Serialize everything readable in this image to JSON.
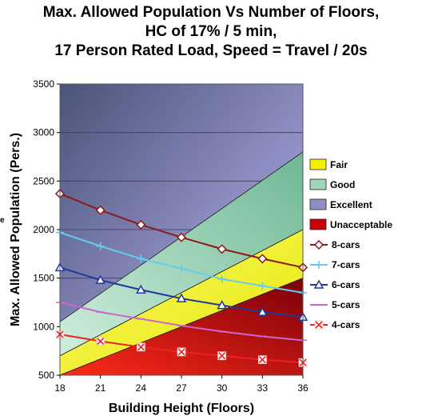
{
  "chart_data": {
    "type": "line",
    "title": [
      "Max. Allowed Population Vs Number of Floors,",
      "HC of 17% / 5 min,",
      "17 Person Rated Load, Speed = Travel / 20s"
    ],
    "xlabel": "Building Height (Floors)",
    "ylabel": "Max. Allowed Population (Pers.)",
    "x": [
      18,
      21,
      24,
      27,
      30,
      33,
      36
    ],
    "xlim": [
      18,
      36
    ],
    "ylim": [
      500,
      3500
    ],
    "yticks": [
      500,
      1000,
      1500,
      2000,
      2500,
      3000,
      3500
    ],
    "grid": true,
    "legend_position": "right",
    "zones": [
      {
        "name": "Fair",
        "color": "#f2f200"
      },
      {
        "name": "Good",
        "color": "#9fd6b8"
      },
      {
        "name": "Excellent",
        "color": "#8f8fc8"
      },
      {
        "name": "Unacceptable",
        "color": "#c8000c"
      }
    ],
    "zone_boundaries": {
      "unacceptable_upper": [
        500,
        1500
      ],
      "fair_upper": [
        700,
        2000
      ],
      "good_upper": [
        1050,
        2800
      ]
    },
    "series": [
      {
        "name": "8-cars",
        "color": "#8b1a1a",
        "marker": "diamond",
        "values": [
          2370,
          2200,
          2050,
          1920,
          1800,
          1700,
          1610
        ]
      },
      {
        "name": "7-cars",
        "color": "#66ccee",
        "marker": "plus",
        "values": [
          1970,
          1830,
          1700,
          1600,
          1490,
          1420,
          1350
        ]
      },
      {
        "name": "6-cars",
        "color": "#1f3a9a",
        "marker": "triangle",
        "values": [
          1610,
          1480,
          1380,
          1290,
          1220,
          1150,
          1100
        ]
      },
      {
        "name": "5-cars",
        "color": "#cc66cc",
        "marker": "dash",
        "values": [
          1250,
          1150,
          1080,
          1010,
          950,
          900,
          860
        ]
      },
      {
        "name": "4-cars",
        "color": "#ee2222",
        "marker": "x",
        "values": [
          920,
          850,
          790,
          740,
          700,
          660,
          630
        ]
      }
    ]
  },
  "edge_mark": "e"
}
